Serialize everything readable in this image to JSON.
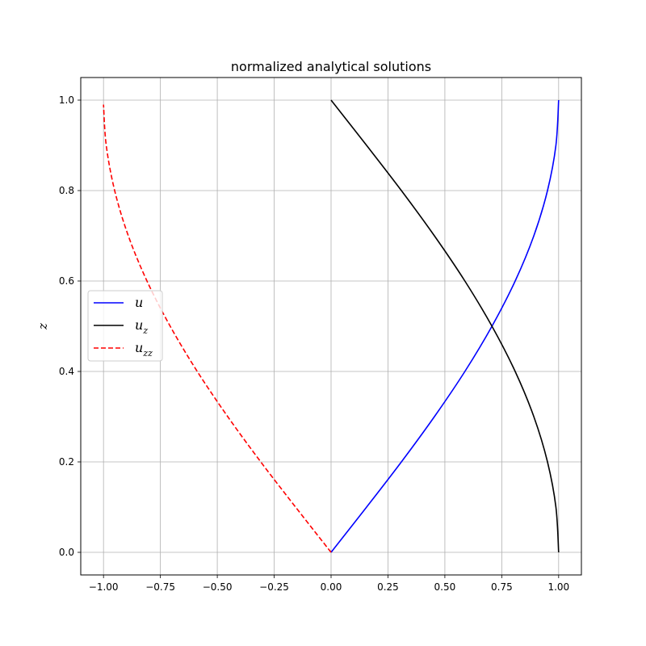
{
  "chart_data": {
    "type": "line",
    "title": "normalized analytical solutions",
    "xlabel": "",
    "ylabel": "z",
    "xlim": [
      -1.1,
      1.1
    ],
    "ylim": [
      -0.05,
      1.05
    ],
    "grid": true,
    "legend_position": "center-left",
    "xticks": [
      -1.0,
      -0.75,
      -0.5,
      -0.25,
      0.0,
      0.25,
      0.5,
      0.75,
      1.0
    ],
    "xtick_labels": [
      "−1.00",
      "−0.75",
      "−0.50",
      "−0.25",
      "0.00",
      "0.25",
      "0.50",
      "0.75",
      "1.00"
    ],
    "yticks": [
      0.0,
      0.2,
      0.4,
      0.6,
      0.8,
      1.0
    ],
    "ytick_labels": [
      "0.0",
      "0.2",
      "0.4",
      "0.6",
      "0.8",
      "1.0"
    ],
    "series": [
      {
        "name": "u",
        "legend_base": "u",
        "legend_sub": "",
        "color": "#0000ff",
        "style": "solid",
        "x": [
          0.0,
          0.156,
          0.309,
          0.454,
          0.588,
          0.707,
          0.809,
          0.891,
          0.951,
          0.988,
          1.0
        ],
        "y": [
          0.0,
          0.1,
          0.2,
          0.3,
          0.4,
          0.5,
          0.6,
          0.7,
          0.8,
          0.9,
          1.0
        ]
      },
      {
        "name": "u_z",
        "legend_base": "u",
        "legend_sub": "z",
        "color": "#000000",
        "style": "solid",
        "x": [
          1.0,
          0.988,
          0.951,
          0.891,
          0.809,
          0.707,
          0.588,
          0.454,
          0.309,
          0.156,
          0.0
        ],
        "y": [
          0.0,
          0.1,
          0.2,
          0.3,
          0.4,
          0.5,
          0.6,
          0.7,
          0.8,
          0.9,
          1.0
        ]
      },
      {
        "name": "u_zz",
        "legend_base": "u",
        "legend_sub": "zz",
        "color": "#ff0000",
        "style": "dashed",
        "x": [
          0.0,
          -0.156,
          -0.309,
          -0.454,
          -0.588,
          -0.707,
          -0.809,
          -0.891,
          -0.951,
          -0.988,
          -1.0
        ],
        "y": [
          0.0,
          0.1,
          0.2,
          0.3,
          0.4,
          0.5,
          0.6,
          0.7,
          0.8,
          0.9,
          0.99
        ]
      }
    ]
  }
}
